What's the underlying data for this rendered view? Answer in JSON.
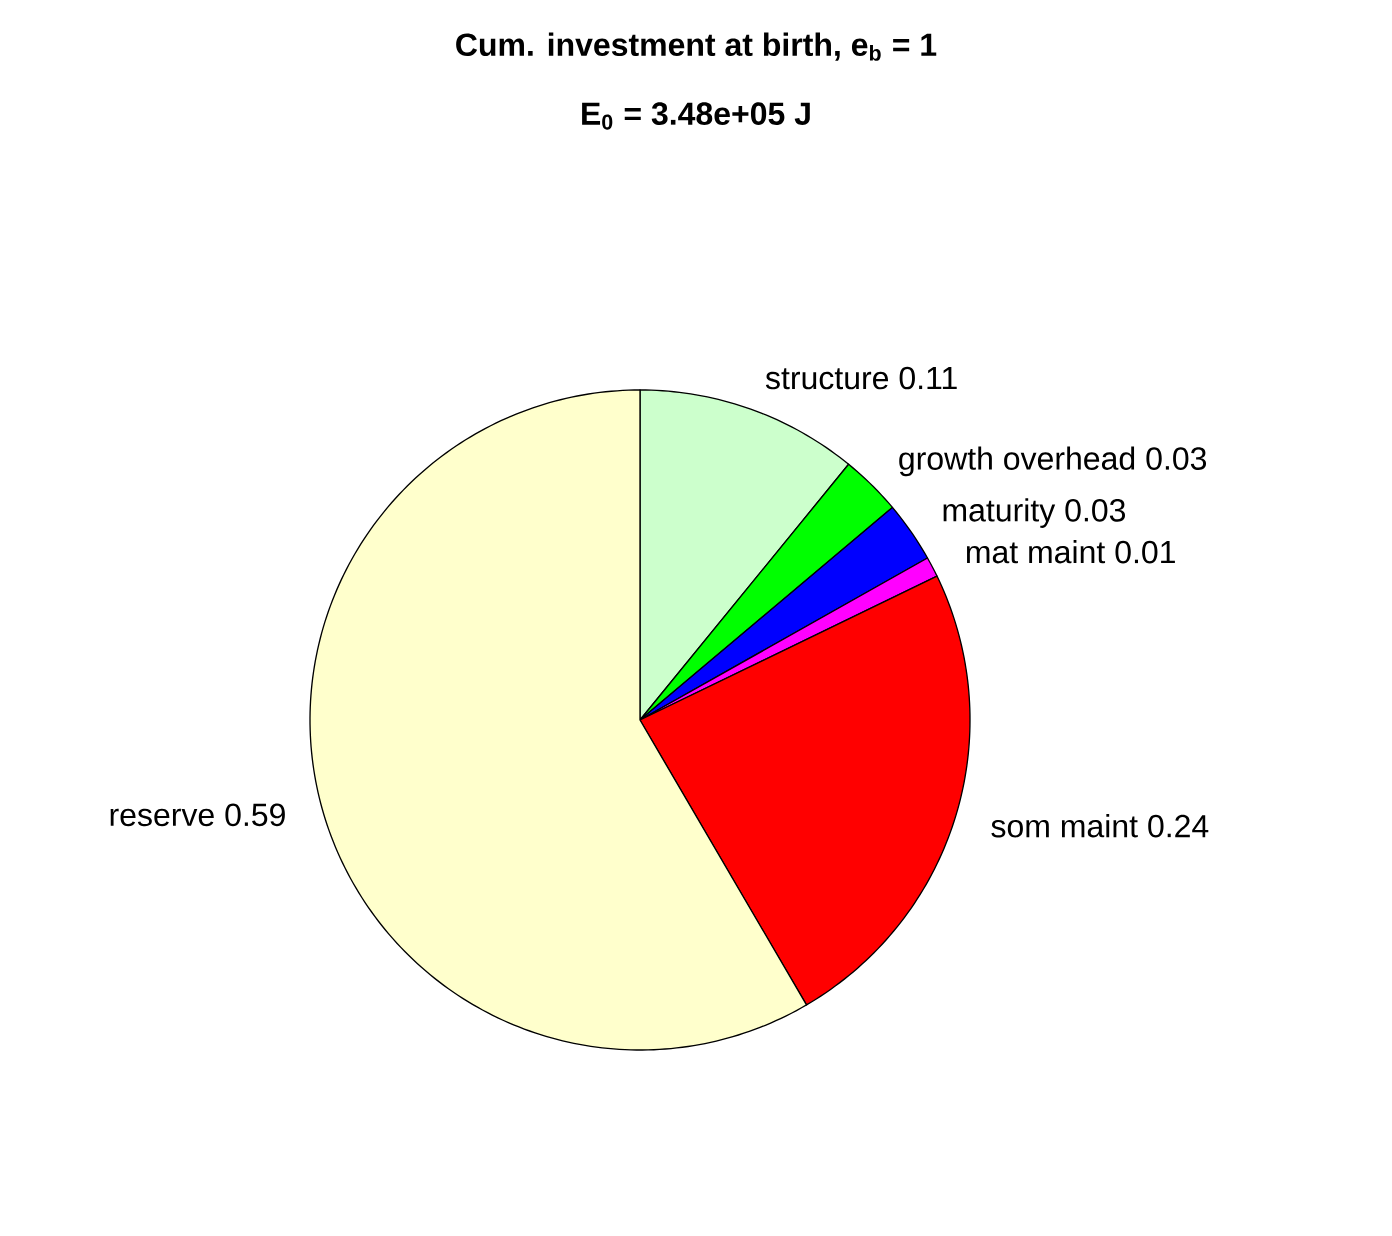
{
  "chart_data": {
    "type": "pie",
    "title": "Cum. investment at birth, e$_{b}$ = 1",
    "subtitle": "E$_{0}$ = 3.48e+05 J",
    "categories": [
      "structure",
      "growth overhead",
      "maturity",
      "mat maint",
      "som maint",
      "reserve"
    ],
    "values": [
      0.11,
      0.03,
      0.03,
      0.01,
      0.24,
      0.59
    ],
    "value_labels": [
      "0.11",
      "0.03",
      "0.03",
      "0.01",
      "0.24",
      "0.59"
    ],
    "colors": [
      "#ccffcc",
      "#00ff00",
      "#0000ff",
      "#ff00ff",
      "#ff0000",
      "#ffffcc"
    ]
  }
}
